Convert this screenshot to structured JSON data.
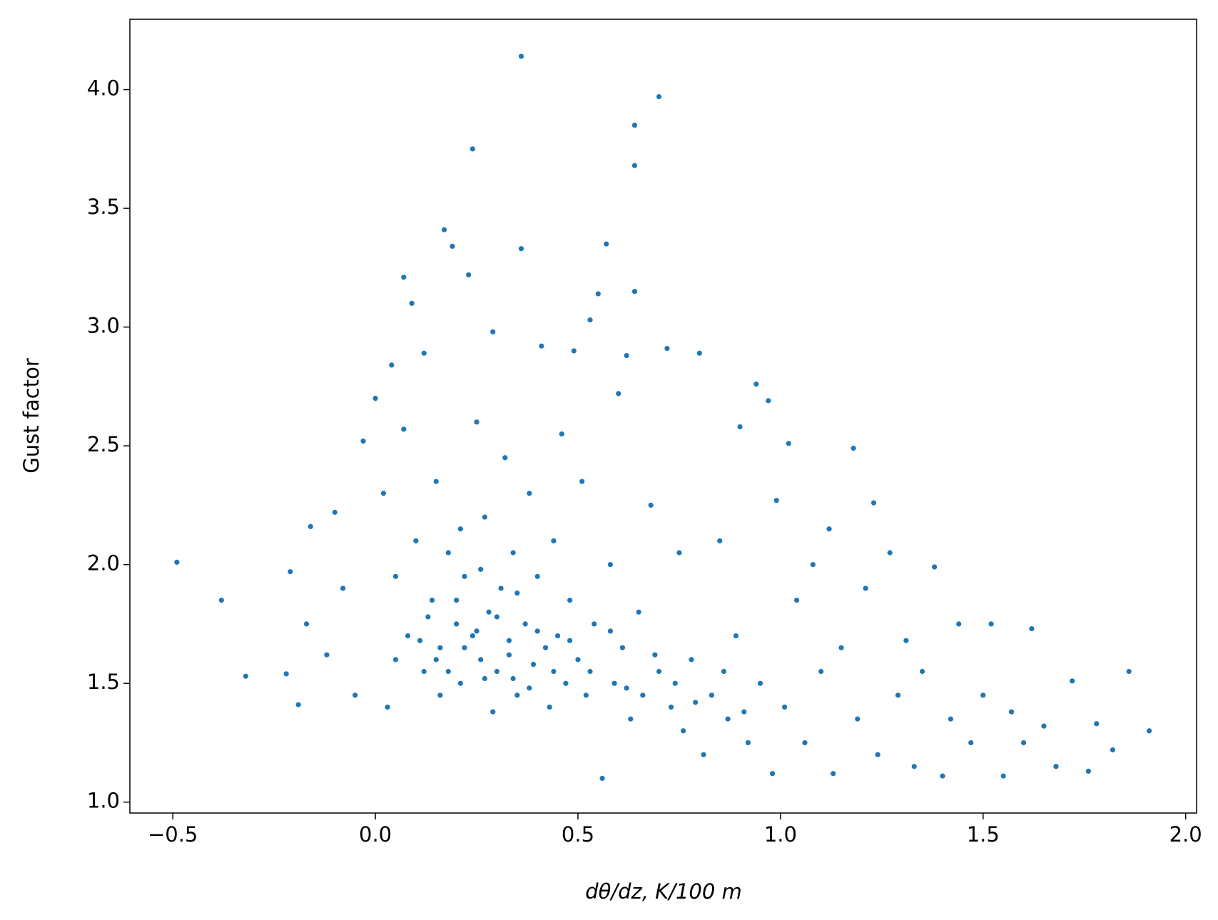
{
  "chart_data": {
    "type": "scatter",
    "xlabel": "dθ/dz, K/100 m",
    "ylabel": "Gust factor",
    "color": "#1f77b4",
    "xlim": [
      -0.606,
      2.027
    ],
    "ylim": [
      0.954,
      4.296
    ],
    "xticks": [
      {
        "value": -0.5,
        "label": "−0.5"
      },
      {
        "value": 0,
        "label": "0.0"
      },
      0.5,
      {
        "value": 1,
        "label": "1.0"
      },
      1.5,
      {
        "value": 2,
        "label": "2.0"
      }
    ],
    "yticks": [
      {
        "value": 1,
        "label": "1.0"
      },
      1.5,
      {
        "value": 2,
        "label": "2.0"
      },
      2.5,
      {
        "value": 3,
        "label": "3.0"
      },
      3.5,
      {
        "value": 4,
        "label": "4.0"
      }
    ],
    "x": [
      -0.49,
      -0.38,
      -0.32,
      -0.22,
      -0.19,
      -0.16,
      -0.1,
      -0.21,
      -0.17,
      -0.12,
      -0.08,
      -0.05,
      -0.03,
      0.0,
      0.02,
      0.04,
      0.07,
      0.09,
      0.12,
      0.07,
      0.03,
      0.05,
      0.08,
      0.1,
      0.12,
      0.14,
      0.15,
      0.16,
      0.17,
      0.18,
      0.19,
      0.2,
      0.21,
      0.22,
      0.23,
      0.24,
      0.24,
      0.25,
      0.26,
      0.27,
      0.28,
      0.29,
      0.3,
      0.31,
      0.32,
      0.33,
      0.34,
      0.35,
      0.36,
      0.36,
      0.37,
      0.38,
      0.39,
      0.4,
      0.41,
      0.42,
      0.43,
      0.44,
      0.45,
      0.46,
      0.47,
      0.48,
      0.49,
      0.5,
      0.51,
      0.52,
      0.53,
      0.54,
      0.55,
      0.56,
      0.57,
      0.58,
      0.59,
      0.6,
      0.61,
      0.62,
      0.63,
      0.64,
      0.64,
      0.64,
      0.65,
      0.66,
      0.68,
      0.7,
      0.7,
      0.72,
      0.73,
      0.75,
      0.76,
      0.78,
      0.8,
      0.81,
      0.83,
      0.85,
      0.87,
      0.89,
      0.9,
      0.92,
      0.94,
      0.95,
      0.97,
      0.98,
      0.99,
      1.01,
      1.02,
      1.04,
      1.06,
      1.08,
      1.1,
      1.12,
      1.13,
      1.15,
      1.18,
      1.19,
      1.21,
      1.23,
      1.24,
      1.27,
      1.29,
      1.31,
      1.33,
      1.35,
      1.38,
      1.4,
      1.42,
      1.44,
      1.47,
      1.5,
      1.52,
      1.55,
      1.57,
      1.6,
      1.62,
      1.65,
      1.68,
      1.72,
      1.76,
      1.78,
      1.82,
      1.86,
      1.91,
      0.15,
      0.18,
      0.22,
      0.25,
      0.27,
      0.2,
      0.3,
      0.33,
      0.13,
      0.26,
      0.35,
      0.4,
      0.44,
      0.11,
      0.05,
      0.48,
      0.53,
      0.58,
      0.62,
      0.69,
      0.74,
      0.79,
      0.86,
      0.91,
      0.16,
      0.21,
      0.29,
      0.34,
      0.38
    ],
    "values": [
      2.01,
      1.85,
      1.53,
      1.54,
      1.41,
      2.16,
      2.22,
      1.97,
      1.75,
      1.62,
      1.9,
      1.45,
      2.52,
      2.7,
      2.3,
      2.84,
      3.21,
      3.1,
      2.89,
      2.57,
      1.4,
      1.95,
      1.7,
      2.1,
      1.55,
      1.85,
      2.35,
      1.65,
      3.41,
      2.05,
      3.34,
      1.75,
      1.5,
      1.95,
      3.22,
      3.75,
      1.7,
      2.6,
      1.6,
      2.2,
      1.8,
      2.98,
      1.55,
      1.9,
      2.45,
      1.68,
      2.05,
      1.45,
      4.14,
      3.33,
      1.75,
      2.3,
      1.58,
      1.95,
      2.92,
      1.65,
      1.4,
      2.1,
      1.7,
      2.55,
      1.5,
      1.85,
      2.9,
      1.6,
      2.35,
      1.45,
      3.03,
      1.75,
      3.14,
      1.1,
      3.35,
      2.0,
      1.5,
      2.72,
      1.65,
      2.88,
      1.35,
      3.85,
      3.68,
      3.15,
      1.8,
      1.45,
      2.25,
      3.97,
      1.55,
      2.91,
      1.4,
      2.05,
      1.3,
      1.6,
      2.89,
      1.2,
      1.45,
      2.1,
      1.35,
      1.7,
      2.58,
      1.25,
      2.76,
      1.5,
      2.69,
      1.12,
      2.27,
      1.4,
      2.51,
      1.85,
      1.25,
      2.0,
      1.55,
      2.15,
      1.12,
      1.65,
      2.49,
      1.35,
      1.9,
      2.26,
      1.2,
      2.05,
      1.45,
      1.68,
      1.15,
      1.55,
      1.99,
      1.11,
      1.35,
      1.75,
      1.25,
      1.45,
      1.75,
      1.11,
      1.38,
      1.25,
      1.73,
      1.32,
      1.15,
      1.51,
      1.13,
      1.33,
      1.22,
      1.55,
      1.3,
      1.6,
      1.55,
      1.65,
      1.72,
      1.52,
      1.85,
      1.78,
      1.62,
      1.78,
      1.98,
      1.88,
      1.72,
      1.55,
      1.68,
      1.6,
      1.68,
      1.55,
      1.72,
      1.48,
      1.62,
      1.5,
      1.42,
      1.55,
      1.38,
      1.45,
      2.15,
      1.38,
      1.52,
      1.48
    ]
  }
}
